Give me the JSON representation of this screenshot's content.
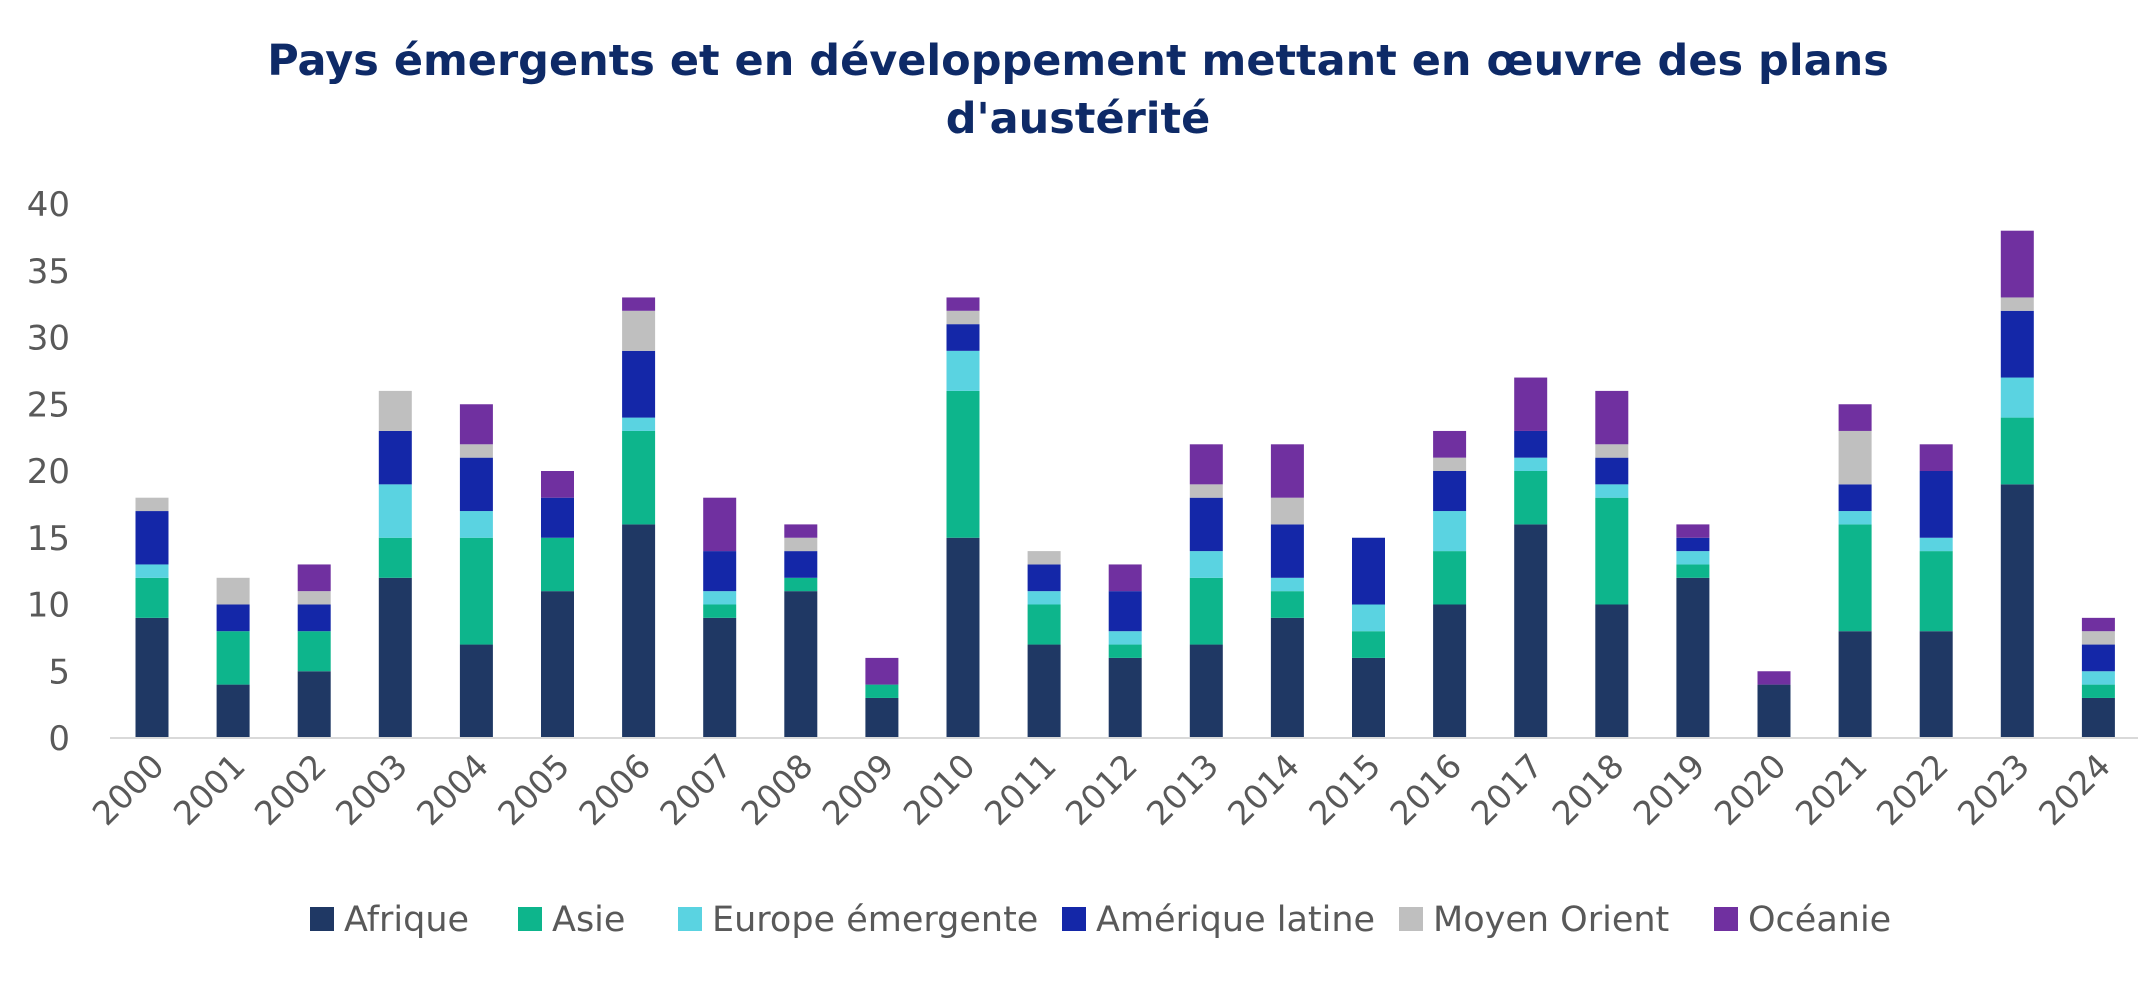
{
  "chart_data": {
    "type": "bar",
    "stacked": true,
    "title_lines": [
      "Pays émergents et en développement mettant en œuvre des plans",
      "d'austérité"
    ],
    "xlabel": "",
    "ylabel": "",
    "ylim": [
      0,
      40
    ],
    "yticks": [
      0,
      5,
      10,
      15,
      20,
      25,
      30,
      35,
      40
    ],
    "grid": false,
    "legend_position": "bottom",
    "categories": [
      "2000",
      "2001",
      "2002",
      "2003",
      "2004",
      "2005",
      "2006",
      "2007",
      "2008",
      "2009",
      "2010",
      "2011",
      "2012",
      "2013",
      "2014",
      "2015",
      "2016",
      "2017",
      "2018",
      "2019",
      "2020",
      "2021",
      "2022",
      "2023",
      "2024"
    ],
    "series": [
      {
        "name": "Afrique",
        "color": "#1f3864",
        "values": [
          9,
          4,
          5,
          12,
          7,
          11,
          16,
          9,
          11,
          3,
          15,
          7,
          6,
          7,
          9,
          6,
          10,
          16,
          10,
          12,
          4,
          8,
          8,
          19,
          3
        ]
      },
      {
        "name": "Asie",
        "color": "#0db58c",
        "values": [
          3,
          4,
          3,
          3,
          8,
          4,
          7,
          1,
          1,
          1,
          11,
          3,
          1,
          5,
          2,
          2,
          4,
          4,
          8,
          1,
          0,
          8,
          6,
          5,
          1
        ]
      },
      {
        "name": "Europe émergente",
        "color": "#5ad3e1",
        "values": [
          1,
          0,
          0,
          4,
          2,
          0,
          1,
          1,
          0,
          0,
          3,
          1,
          1,
          2,
          1,
          2,
          3,
          1,
          1,
          1,
          0,
          1,
          1,
          3,
          1
        ]
      },
      {
        "name": "Amérique latine",
        "color": "#1427a8",
        "values": [
          4,
          2,
          2,
          4,
          4,
          3,
          5,
          3,
          2,
          0,
          2,
          2,
          3,
          4,
          4,
          5,
          3,
          2,
          2,
          1,
          0,
          2,
          5,
          5,
          2
        ]
      },
      {
        "name": "Moyen Orient",
        "color": "#bfbfbf",
        "values": [
          1,
          2,
          1,
          3,
          1,
          0,
          3,
          0,
          1,
          0,
          1,
          1,
          0,
          1,
          2,
          0,
          1,
          0,
          1,
          0,
          0,
          4,
          0,
          1,
          1
        ]
      },
      {
        "name": "Océanie",
        "color": "#7030a0",
        "values": [
          0,
          0,
          2,
          0,
          3,
          2,
          1,
          4,
          1,
          2,
          1,
          0,
          2,
          3,
          4,
          0,
          2,
          4,
          4,
          1,
          1,
          2,
          2,
          5,
          1
        ]
      }
    ]
  }
}
